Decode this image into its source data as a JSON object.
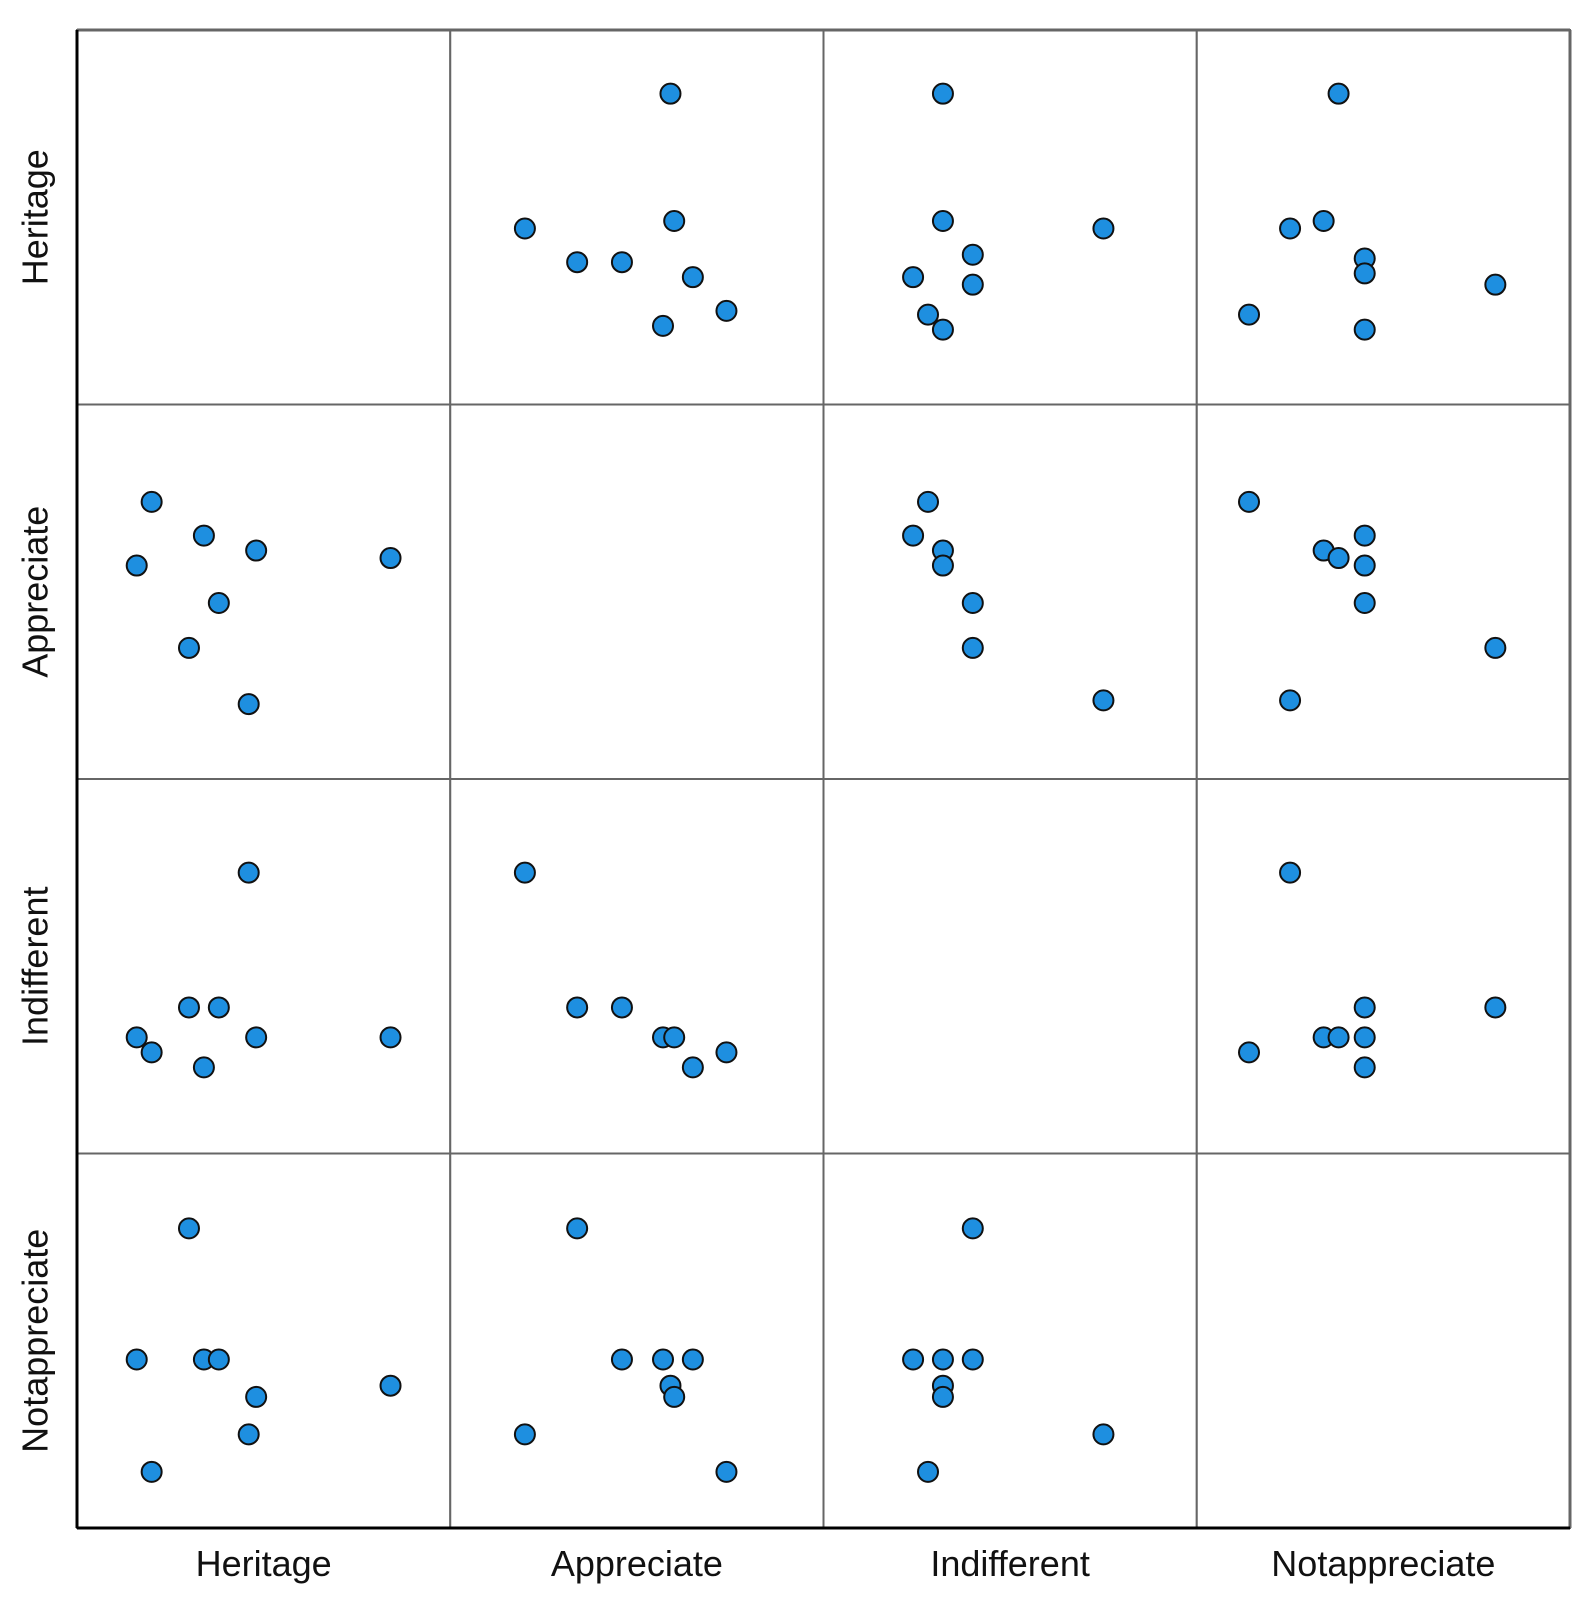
{
  "chart_data": {
    "type": "scatter",
    "variables": [
      "Heritage",
      "Appreciate",
      "Indifferent",
      "Notappreciate"
    ],
    "grid": true,
    "legend": false,
    "point_color": "#1e8fe0",
    "point_edge_color": "#111111",
    "panels": [
      {
        "row": "Heritage",
        "col": "Appreciate",
        "points": [
          [
            0.59,
            0.17
          ],
          [
            0.2,
            0.53
          ],
          [
            0.34,
            0.62
          ],
          [
            0.46,
            0.62
          ],
          [
            0.6,
            0.51
          ],
          [
            0.65,
            0.66
          ],
          [
            0.74,
            0.75
          ],
          [
            0.57,
            0.79
          ]
        ]
      },
      {
        "row": "Heritage",
        "col": "Indifferent",
        "points": [
          [
            0.32,
            0.17
          ],
          [
            0.32,
            0.51
          ],
          [
            0.4,
            0.6
          ],
          [
            0.24,
            0.66
          ],
          [
            0.4,
            0.68
          ],
          [
            0.28,
            0.76
          ],
          [
            0.32,
            0.8
          ],
          [
            0.75,
            0.53
          ]
        ]
      },
      {
        "row": "Heritage",
        "col": "Notappreciate",
        "points": [
          [
            0.38,
            0.17
          ],
          [
            0.25,
            0.53
          ],
          [
            0.34,
            0.51
          ],
          [
            0.45,
            0.61
          ],
          [
            0.45,
            0.65
          ],
          [
            0.14,
            0.76
          ],
          [
            0.45,
            0.8
          ],
          [
            0.8,
            0.68
          ]
        ]
      },
      {
        "row": "Appreciate",
        "col": "Heritage",
        "points": [
          [
            0.2,
            0.26
          ],
          [
            0.34,
            0.35
          ],
          [
            0.48,
            0.39
          ],
          [
            0.84,
            0.41
          ],
          [
            0.16,
            0.43
          ],
          [
            0.38,
            0.53
          ],
          [
            0.3,
            0.65
          ],
          [
            0.46,
            0.8
          ]
        ]
      },
      {
        "row": "Appreciate",
        "col": "Indifferent",
        "points": [
          [
            0.28,
            0.26
          ],
          [
            0.24,
            0.35
          ],
          [
            0.32,
            0.39
          ],
          [
            0.32,
            0.43
          ],
          [
            0.4,
            0.53
          ],
          [
            0.4,
            0.65
          ],
          [
            0.75,
            0.79
          ]
        ]
      },
      {
        "row": "Appreciate",
        "col": "Notappreciate",
        "points": [
          [
            0.14,
            0.26
          ],
          [
            0.45,
            0.35
          ],
          [
            0.34,
            0.39
          ],
          [
            0.38,
            0.41
          ],
          [
            0.45,
            0.43
          ],
          [
            0.45,
            0.53
          ],
          [
            0.8,
            0.65
          ],
          [
            0.25,
            0.79
          ]
        ]
      },
      {
        "row": "Indifferent",
        "col": "Heritage",
        "points": [
          [
            0.46,
            0.25
          ],
          [
            0.3,
            0.61
          ],
          [
            0.38,
            0.61
          ],
          [
            0.16,
            0.69
          ],
          [
            0.2,
            0.73
          ],
          [
            0.48,
            0.69
          ],
          [
            0.34,
            0.77
          ],
          [
            0.84,
            0.69
          ]
        ]
      },
      {
        "row": "Indifferent",
        "col": "Appreciate",
        "points": [
          [
            0.2,
            0.25
          ],
          [
            0.34,
            0.61
          ],
          [
            0.46,
            0.61
          ],
          [
            0.57,
            0.69
          ],
          [
            0.6,
            0.69
          ],
          [
            0.65,
            0.77
          ],
          [
            0.74,
            0.73
          ]
        ]
      },
      {
        "row": "Indifferent",
        "col": "Notappreciate",
        "points": [
          [
            0.25,
            0.25
          ],
          [
            0.45,
            0.61
          ],
          [
            0.34,
            0.69
          ],
          [
            0.38,
            0.69
          ],
          [
            0.45,
            0.69
          ],
          [
            0.45,
            0.77
          ],
          [
            0.14,
            0.73
          ],
          [
            0.8,
            0.61
          ]
        ]
      },
      {
        "row": "Notappreciate",
        "col": "Heritage",
        "points": [
          [
            0.3,
            0.2
          ],
          [
            0.16,
            0.55
          ],
          [
            0.34,
            0.55
          ],
          [
            0.38,
            0.55
          ],
          [
            0.48,
            0.65
          ],
          [
            0.84,
            0.62
          ],
          [
            0.46,
            0.75
          ],
          [
            0.2,
            0.85
          ]
        ]
      },
      {
        "row": "Notappreciate",
        "col": "Appreciate",
        "points": [
          [
            0.34,
            0.2
          ],
          [
            0.46,
            0.55
          ],
          [
            0.57,
            0.55
          ],
          [
            0.65,
            0.55
          ],
          [
            0.59,
            0.62
          ],
          [
            0.6,
            0.65
          ],
          [
            0.2,
            0.75
          ],
          [
            0.74,
            0.85
          ]
        ]
      },
      {
        "row": "Notappreciate",
        "col": "Indifferent",
        "points": [
          [
            0.4,
            0.2
          ],
          [
            0.24,
            0.55
          ],
          [
            0.32,
            0.55
          ],
          [
            0.4,
            0.55
          ],
          [
            0.32,
            0.62
          ],
          [
            0.32,
            0.65
          ],
          [
            0.75,
            0.75
          ],
          [
            0.28,
            0.85
          ]
        ]
      }
    ]
  }
}
